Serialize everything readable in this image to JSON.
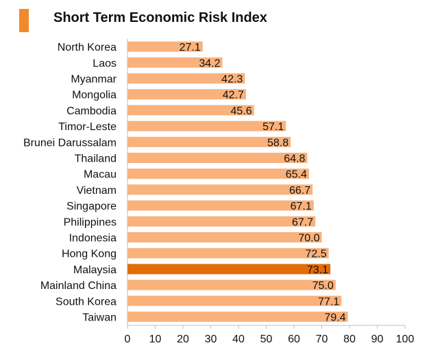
{
  "header": {
    "title": "Short Term Economic Risk Index",
    "accent_color": "#f08a2c"
  },
  "chart_data": {
    "type": "bar",
    "orientation": "horizontal",
    "title": "Short Term Economic Risk Index",
    "xlabel": "",
    "ylabel": "",
    "xlim": [
      0,
      100
    ],
    "ticks": [
      0,
      10,
      20,
      30,
      40,
      50,
      60,
      70,
      80,
      90,
      100
    ],
    "grid": false,
    "legend": "none",
    "categories": [
      "North Korea",
      "Laos",
      "Myanmar",
      "Mongolia",
      "Cambodia",
      "Timor-Leste",
      "Brunei Darussalam",
      "Thailand",
      "Macau",
      "Vietnam",
      "Singapore",
      "Philippines",
      "Indonesia",
      "Hong Kong",
      "Malaysia",
      "Mainland China",
      "South Korea",
      "Taiwan"
    ],
    "values": [
      27.1,
      34.2,
      42.3,
      42.7,
      45.6,
      57.1,
      58.8,
      64.8,
      65.4,
      66.7,
      67.1,
      67.7,
      70.0,
      72.5,
      73.1,
      75.0,
      77.1,
      79.4
    ],
    "data_labels": [
      "27.1",
      "34.2",
      "42.3",
      "42.7",
      "45.6",
      "57.1",
      "58.8",
      "64.8",
      "65.4",
      "66.7",
      "67.1",
      "67.7",
      "70.0",
      "72.5",
      "73.1",
      "75.0",
      "77.1",
      "79.4"
    ],
    "highlight_category": "Malaysia",
    "bar_color": "#f9b27c",
    "highlight_color": "#e36c0a",
    "axis_color": "#bfbfbf"
  }
}
